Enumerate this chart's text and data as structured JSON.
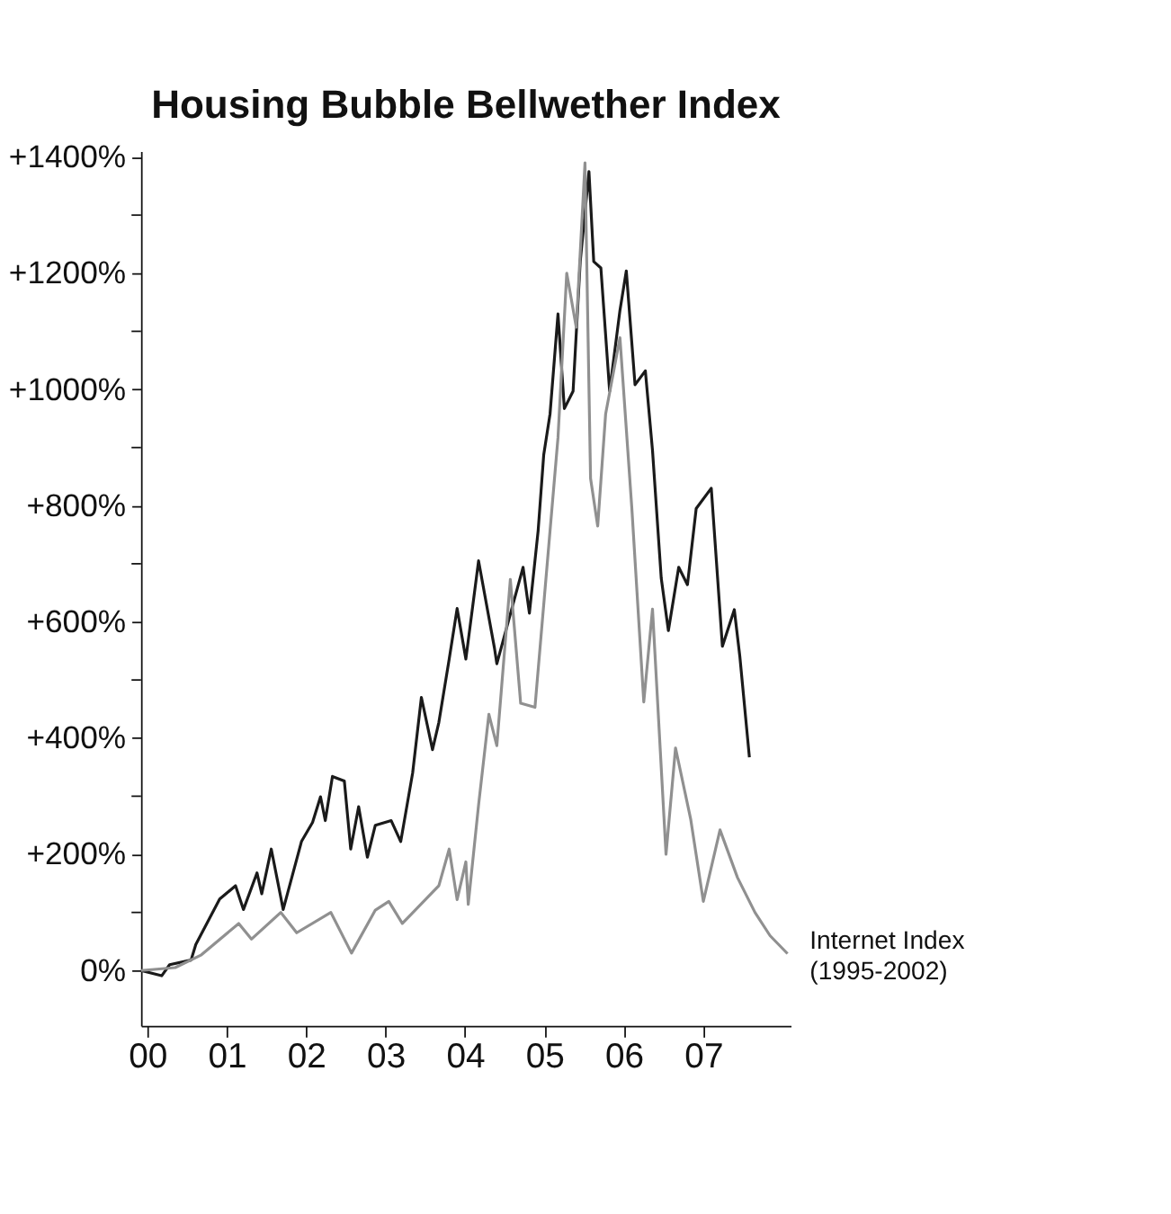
{
  "chart_data": {
    "type": "line",
    "title": "Housing Bubble Bellwether Index",
    "xlim": [
      1999.92,
      2008.1
    ],
    "ylim": [
      -95,
      1410
    ],
    "xticks": [
      {
        "value": 2000,
        "label": "00"
      },
      {
        "value": 2001,
        "label": "01"
      },
      {
        "value": 2002,
        "label": "02"
      },
      {
        "value": 2003,
        "label": "03"
      },
      {
        "value": 2004,
        "label": "04"
      },
      {
        "value": 2005,
        "label": "05"
      },
      {
        "value": 2006,
        "label": "06"
      },
      {
        "value": 2007,
        "label": "07"
      }
    ],
    "yticks": [
      {
        "value": 0,
        "label": "0%"
      },
      {
        "value": 100,
        "label": null
      },
      {
        "value": 200,
        "label": "+200%"
      },
      {
        "value": 300,
        "label": null
      },
      {
        "value": 400,
        "label": "+400%"
      },
      {
        "value": 500,
        "label": null
      },
      {
        "value": 600,
        "label": "+600%"
      },
      {
        "value": 700,
        "label": null
      },
      {
        "value": 800,
        "label": "+800%"
      },
      {
        "value": 900,
        "label": null
      },
      {
        "value": 1000,
        "label": "+1000%"
      },
      {
        "value": 1100,
        "label": null
      },
      {
        "value": 1200,
        "label": "+1200%"
      },
      {
        "value": 1300,
        "label": null
      },
      {
        "value": 1400,
        "label": "+1400%"
      }
    ],
    "grid": false,
    "legend": false,
    "marker": "none",
    "line_style": "solid",
    "series": [
      {
        "color": "#1a1a1a",
        "x": [
          1999.92,
          2000.18,
          2000.28,
          2000.55,
          2000.61,
          2000.91,
          2001.11,
          2001.21,
          2001.38,
          2001.44,
          2001.56,
          2001.71,
          2001.94,
          2002.08,
          2002.18,
          2002.24,
          2002.33,
          2002.48,
          2002.56,
          2002.66,
          2002.77,
          2002.87,
          2003.07,
          2003.19,
          2003.34,
          2003.45,
          2003.59,
          2003.67,
          2003.8,
          2003.9,
          2004.01,
          2004.17,
          2004.37,
          2004.4,
          2004.73,
          2004.81,
          2004.92,
          2004.99,
          2005.07,
          2005.17,
          2005.25,
          2005.36,
          2005.45,
          2005.56,
          2005.62,
          2005.71,
          2005.82,
          2005.95,
          2006.03,
          2006.14,
          2006.27,
          2006.36,
          2006.47,
          2006.56,
          2006.69,
          2006.8,
          2006.91,
          2007.1,
          2007.24,
          2007.39,
          2007.46,
          2007.58
        ],
        "values": [
          0,
          -9,
          10,
          18,
          45,
          123,
          146,
          105,
          168,
          132,
          209,
          105,
          222,
          255,
          299,
          258,
          334,
          326,
          209,
          282,
          195,
          250,
          258,
          222,
          340,
          470,
          380,
          427,
          536,
          623,
          536,
          705,
          555,
          528,
          694,
          615,
          757,
          887,
          958,
          1130,
          967,
          997,
          1220,
          1375,
          1220,
          1209,
          997,
          1136,
          1204,
          1008,
          1032,
          895,
          675,
          585,
          694,
          664,
          795,
          830,
          558,
          621,
          540,
          367
        ]
      },
      {
        "name": "Internet Index\n(1995-2002)",
        "color": "#909090",
        "x": [
          1999.92,
          2000.35,
          2000.68,
          2001.15,
          2001.31,
          2001.68,
          2001.88,
          2002.31,
          2002.57,
          2002.87,
          2003.04,
          2003.21,
          2003.67,
          2003.8,
          2003.9,
          2004.01,
          2004.04,
          2004.17,
          2004.3,
          2004.4,
          2004.57,
          2004.7,
          2004.88,
          2005.17,
          2005.28,
          2005.4,
          2005.51,
          2005.58,
          2005.67,
          2005.77,
          2005.95,
          2006.1,
          2006.25,
          2006.36,
          2006.53,
          2006.65,
          2006.84,
          2007.0,
          2007.21,
          2007.43,
          2007.65,
          2007.84,
          2008.06
        ],
        "values": [
          0,
          5,
          27,
          81,
          54,
          100,
          65,
          100,
          30,
          104,
          119,
          81,
          146,
          209,
          122,
          187,
          114,
          285,
          441,
          387,
          673,
          460,
          453,
          917,
          1200,
          1107,
          1390,
          847,
          765,
          958,
          1089,
          795,
          462,
          622,
          200,
          383,
          261,
          119,
          242,
          160,
          100,
          60,
          29
        ]
      }
    ]
  }
}
